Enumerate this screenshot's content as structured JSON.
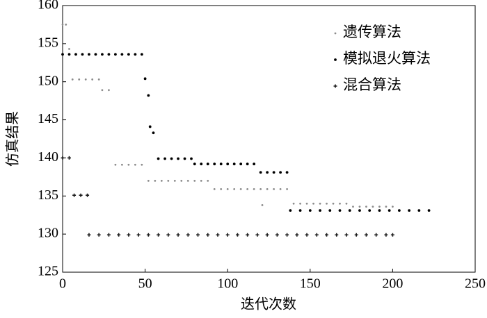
{
  "chart_data": {
    "type": "scatter",
    "xlabel": "迭代次数",
    "ylabel": "仿真结果",
    "xlim": [
      0,
      250
    ],
    "xticks": [
      0,
      50,
      100,
      150,
      200,
      250
    ],
    "ylim": [
      125,
      160
    ],
    "yticks": [
      125,
      130,
      135,
      140,
      145,
      150,
      155,
      160
    ],
    "legend": "upper right",
    "series": [
      {
        "name": "遗传算法",
        "color": "#8c8c8c",
        "x": [
          0,
          2,
          4,
          6,
          10,
          14,
          18,
          22,
          24,
          28,
          32,
          36,
          40,
          44,
          48,
          52,
          56,
          60,
          64,
          68,
          72,
          76,
          80,
          84,
          88,
          92,
          96,
          100,
          104,
          108,
          112,
          116,
          120,
          121,
          124,
          128,
          132,
          136,
          140,
          144,
          148,
          152,
          156,
          160,
          164,
          168,
          172,
          176,
          180,
          184,
          188,
          192,
          196,
          200
        ],
        "values": [
          157.5,
          157.5,
          154.3,
          150.3,
          150.3,
          150.3,
          150.3,
          150.3,
          148.9,
          148.9,
          139.1,
          139.1,
          139.1,
          139.1,
          139.1,
          137,
          137,
          137,
          137,
          137,
          137,
          137,
          137,
          137,
          137,
          135.9,
          135.9,
          135.9,
          135.9,
          135.9,
          135.9,
          135.9,
          135.9,
          133.8,
          135.9,
          135.9,
          135.9,
          135.9,
          134,
          134,
          134,
          134,
          134,
          134,
          134,
          134,
          134,
          133.6,
          133.6,
          133.6,
          133.6,
          133.6,
          133.6,
          133.6
        ]
      },
      {
        "name": "模拟退火算法",
        "color": "#000000",
        "x": [
          0,
          4,
          8,
          12,
          16,
          20,
          24,
          28,
          32,
          36,
          40,
          44,
          48,
          50,
          52,
          53,
          55,
          58,
          62,
          66,
          70,
          74,
          78,
          80,
          84,
          88,
          92,
          96,
          100,
          104,
          108,
          112,
          116,
          120,
          124,
          128,
          132,
          136,
          138,
          144,
          150,
          156,
          162,
          168,
          174,
          180,
          186,
          192,
          198,
          204,
          210,
          216,
          222
        ],
        "values": [
          153.6,
          153.6,
          153.6,
          153.6,
          153.6,
          153.6,
          153.6,
          153.6,
          153.6,
          153.6,
          153.6,
          153.6,
          153.6,
          150.4,
          148.2,
          144.1,
          143.3,
          139.9,
          139.9,
          139.9,
          139.9,
          139.9,
          139.9,
          139.2,
          139.2,
          139.2,
          139.2,
          139.2,
          139.2,
          139.2,
          139.2,
          139.2,
          139.2,
          138.1,
          138.1,
          138.1,
          138.1,
          138.1,
          133.1,
          133.1,
          133.1,
          133.1,
          133.1,
          133.1,
          133.1,
          133.1,
          133.1,
          133.1,
          133.1,
          133.1,
          133.1,
          133.1,
          133.1
        ]
      },
      {
        "name": "混合算法",
        "color": "#1a1a1a",
        "x": [
          0,
          4,
          7,
          11,
          15,
          16,
          22,
          28,
          34,
          40,
          46,
          52,
          58,
          64,
          70,
          76,
          82,
          88,
          94,
          100,
          106,
          112,
          118,
          124,
          130,
          136,
          142,
          148,
          154,
          160,
          166,
          172,
          178,
          184,
          190,
          196,
          200
        ],
        "values": [
          140,
          140,
          135.1,
          135.1,
          135.1,
          129.9,
          129.9,
          129.9,
          129.9,
          129.9,
          129.9,
          129.9,
          129.9,
          129.9,
          129.9,
          129.9,
          129.9,
          129.9,
          129.9,
          129.9,
          129.9,
          129.9,
          129.9,
          129.9,
          129.9,
          129.9,
          129.9,
          129.9,
          129.9,
          129.9,
          129.9,
          129.9,
          129.9,
          129.9,
          129.9,
          129.9,
          129.9
        ]
      }
    ]
  }
}
